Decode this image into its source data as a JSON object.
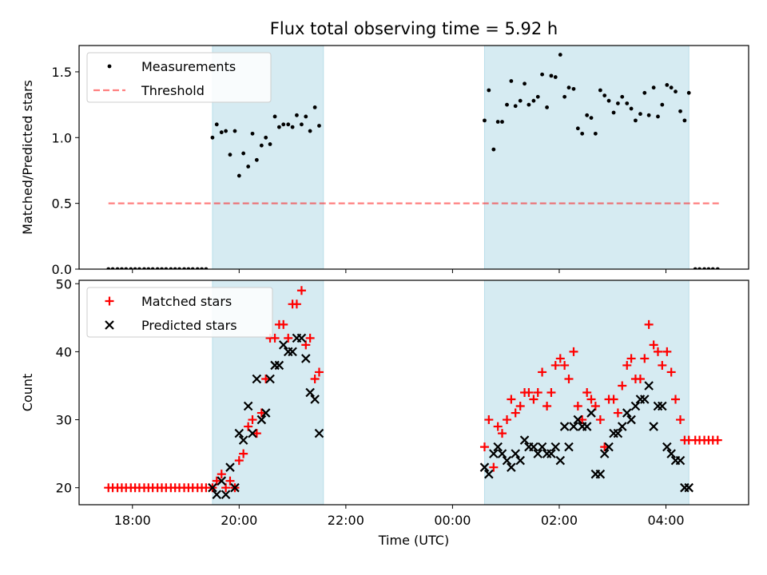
{
  "title": "Flux total observing time = 5.92 h",
  "colors": {
    "shade": "#add8e6",
    "measurement": "#000000",
    "threshold": "#ff0000",
    "matched": "#ff0000",
    "predicted": "#000000"
  },
  "chart_data": [
    {
      "type": "scatter",
      "panel": "top",
      "ylabel": "Matched/Predicted stars",
      "xlabel": "",
      "ylim": [
        0,
        1.7
      ],
      "yticks": [
        0.0,
        0.5,
        1.0,
        1.5
      ],
      "ytick_labels": [
        "0.0",
        "0.5",
        "1.0",
        "1.5"
      ],
      "xlim_hours": [
        17.0,
        29.55
      ],
      "shaded_intervals_hours": [
        [
          19.5,
          21.58
        ],
        [
          24.6,
          28.43
        ]
      ],
      "legend": {
        "placement": "upper-left",
        "entries": [
          {
            "label": "Measurements",
            "series": "measurements"
          },
          {
            "label": "Threshold",
            "series": "threshold"
          }
        ]
      },
      "series": [
        {
          "name": "Measurements",
          "key": "measurements",
          "x_hours": [
            17.55,
            17.63,
            17.72,
            17.8,
            17.88,
            17.97,
            18.05,
            18.13,
            18.22,
            18.3,
            18.38,
            18.47,
            18.55,
            18.63,
            18.72,
            18.8,
            18.88,
            18.97,
            19.05,
            19.13,
            19.22,
            19.3,
            19.38,
            19.5,
            19.58,
            19.67,
            19.75,
            19.83,
            19.92,
            20.0,
            20.08,
            20.17,
            20.25,
            20.33,
            20.42,
            20.5,
            20.58,
            20.67,
            20.75,
            20.83,
            20.92,
            21.0,
            21.08,
            21.17,
            21.25,
            21.33,
            21.42,
            21.5,
            24.6,
            24.68,
            24.77,
            24.85,
            24.93,
            25.02,
            25.1,
            25.18,
            25.27,
            25.35,
            25.43,
            25.52,
            25.6,
            25.68,
            25.77,
            25.85,
            25.93,
            26.02,
            26.1,
            26.18,
            26.27,
            26.35,
            26.43,
            26.52,
            26.6,
            26.68,
            26.77,
            26.85,
            26.93,
            27.02,
            27.1,
            27.18,
            27.27,
            27.35,
            27.43,
            27.52,
            27.6,
            27.68,
            27.77,
            27.85,
            27.93,
            28.02,
            28.1,
            28.18,
            28.27,
            28.35,
            28.43,
            28.55,
            28.63,
            28.72,
            28.8,
            28.88,
            28.97
          ],
          "y": [
            0,
            0,
            0,
            0,
            0,
            0,
            0,
            0,
            0,
            0,
            0,
            0,
            0,
            0,
            0,
            0,
            0,
            0,
            0,
            0,
            0,
            0,
            0,
            1.0,
            1.1,
            1.04,
            1.05,
            0.87,
            1.05,
            0.71,
            0.88,
            0.78,
            1.03,
            0.83,
            0.94,
            1.0,
            0.95,
            1.16,
            1.08,
            1.1,
            1.1,
            1.08,
            1.17,
            1.1,
            1.16,
            1.05,
            1.23,
            1.09,
            1.13,
            1.36,
            0.91,
            1.12,
            1.12,
            1.25,
            1.43,
            1.24,
            1.28,
            1.41,
            1.25,
            1.28,
            1.31,
            1.48,
            1.23,
            1.47,
            1.46,
            1.63,
            1.31,
            1.38,
            1.37,
            1.07,
            1.03,
            1.17,
            1.15,
            1.03,
            1.36,
            1.32,
            1.28,
            1.19,
            1.26,
            1.31,
            1.26,
            1.22,
            1.13,
            1.18,
            1.34,
            1.17,
            1.38,
            1.16,
            1.25,
            1.4,
            1.38,
            1.35,
            1.2,
            1.13,
            1.34,
            0,
            0,
            0,
            0,
            0,
            0
          ]
        },
        {
          "name": "Threshold",
          "key": "threshold",
          "x_hours": [
            17.55,
            29.0
          ],
          "y": [
            0.5,
            0.5
          ]
        }
      ]
    },
    {
      "type": "scatter",
      "panel": "bottom",
      "ylabel": "Count",
      "xlabel": "Time (UTC)",
      "ylim": [
        17.5,
        50.5
      ],
      "yticks": [
        20,
        30,
        40,
        50
      ],
      "ytick_labels": [
        "20",
        "30",
        "40",
        "50"
      ],
      "xlim_hours": [
        17.0,
        29.55
      ],
      "xticks_hours": [
        18,
        20,
        22,
        24,
        26,
        28
      ],
      "xtick_labels": [
        "18:00",
        "20:00",
        "22:00",
        "00:00",
        "02:00",
        "04:00"
      ],
      "shaded_intervals_hours": [
        [
          19.5,
          21.58
        ],
        [
          24.6,
          28.43
        ]
      ],
      "legend": {
        "placement": "upper-left",
        "entries": [
          {
            "label": "Matched stars",
            "series": "matched"
          },
          {
            "label": "Predicted stars",
            "series": "predicted"
          }
        ]
      },
      "series": [
        {
          "name": "Matched stars",
          "key": "matched",
          "x_hours": [
            17.55,
            17.63,
            17.72,
            17.8,
            17.88,
            17.97,
            18.05,
            18.13,
            18.22,
            18.3,
            18.38,
            18.47,
            18.55,
            18.63,
            18.72,
            18.8,
            18.88,
            18.97,
            19.05,
            19.13,
            19.22,
            19.3,
            19.38,
            19.5,
            19.58,
            19.67,
            19.75,
            19.83,
            19.92,
            20.0,
            20.08,
            20.17,
            20.25,
            20.33,
            20.42,
            20.5,
            20.58,
            20.67,
            20.75,
            20.83,
            20.92,
            21.0,
            21.08,
            21.17,
            21.25,
            21.33,
            21.42,
            21.5,
            24.6,
            24.68,
            24.77,
            24.85,
            24.93,
            25.02,
            25.1,
            25.18,
            25.27,
            25.35,
            25.43,
            25.52,
            25.6,
            25.68,
            25.77,
            25.85,
            25.93,
            26.02,
            26.1,
            26.18,
            26.27,
            26.35,
            26.43,
            26.52,
            26.6,
            26.68,
            26.77,
            26.85,
            26.93,
            27.02,
            27.1,
            27.18,
            27.27,
            27.35,
            27.43,
            27.52,
            27.6,
            27.68,
            27.77,
            27.85,
            27.93,
            28.02,
            28.1,
            28.18,
            28.27,
            28.35,
            28.43,
            28.55,
            28.63,
            28.72,
            28.8,
            28.88,
            28.97
          ],
          "y": [
            20,
            20,
            20,
            20,
            20,
            20,
            20,
            20,
            20,
            20,
            20,
            20,
            20,
            20,
            20,
            20,
            20,
            20,
            20,
            20,
            20,
            20,
            20,
            20,
            21,
            22,
            20,
            21,
            20,
            24,
            25,
            29,
            30,
            28,
            31,
            36,
            42,
            42,
            44,
            44,
            42,
            47,
            47,
            49,
            41,
            42,
            36,
            37,
            26,
            30,
            23,
            29,
            28,
            30,
            33,
            31,
            32,
            34,
            34,
            33,
            34,
            37,
            32,
            34,
            38,
            39,
            38,
            36,
            40,
            32,
            30,
            34,
            33,
            32,
            30,
            26,
            33,
            33,
            31,
            35,
            38,
            39,
            36,
            36,
            39,
            44,
            41,
            40,
            38,
            40,
            37,
            33,
            30,
            27,
            27,
            27,
            27,
            27,
            27,
            27,
            27
          ]
        },
        {
          "name": "Predicted stars",
          "key": "predicted",
          "x_hours": [
            19.5,
            19.58,
            19.67,
            19.75,
            19.83,
            19.92,
            20.0,
            20.08,
            20.17,
            20.25,
            20.33,
            20.42,
            20.5,
            20.58,
            20.67,
            20.75,
            20.83,
            20.92,
            21.0,
            21.08,
            21.17,
            21.25,
            21.33,
            21.42,
            21.5,
            24.6,
            24.68,
            24.77,
            24.85,
            24.93,
            25.02,
            25.1,
            25.18,
            25.27,
            25.35,
            25.43,
            25.52,
            25.6,
            25.68,
            25.77,
            25.85,
            25.93,
            26.02,
            26.1,
            26.18,
            26.27,
            26.35,
            26.43,
            26.52,
            26.6,
            26.68,
            26.77,
            26.85,
            26.93,
            27.02,
            27.1,
            27.18,
            27.27,
            27.35,
            27.43,
            27.52,
            27.6,
            27.68,
            27.77,
            27.85,
            27.93,
            28.02,
            28.1,
            28.18,
            28.27,
            28.35,
            28.43
          ],
          "y": [
            20,
            19,
            21,
            19,
            23,
            20,
            28,
            27,
            32,
            28,
            36,
            30,
            31,
            36,
            38,
            38,
            41,
            40,
            40,
            42,
            42,
            39,
            34,
            33,
            28,
            23,
            22,
            25,
            26,
            25,
            24,
            23,
            25,
            24,
            27,
            26,
            26,
            25,
            26,
            25,
            25,
            26,
            24,
            29,
            26,
            29,
            30,
            29,
            29,
            31,
            22,
            22,
            25,
            26,
            28,
            28,
            29,
            31,
            30,
            32,
            33,
            33,
            35,
            29,
            32,
            32,
            26,
            25,
            24,
            24,
            20,
            20
          ]
        }
      ]
    }
  ]
}
